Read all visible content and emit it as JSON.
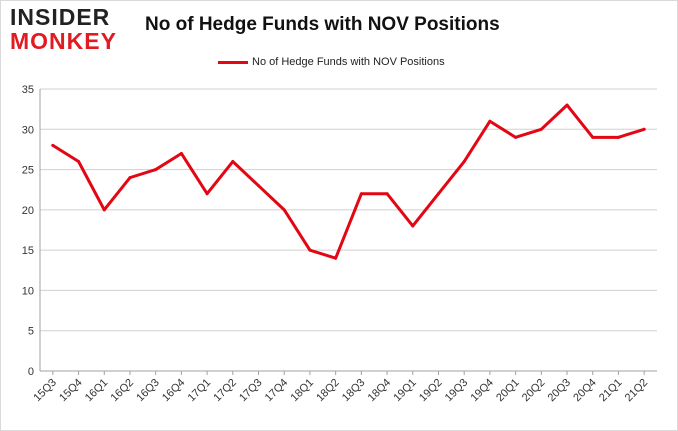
{
  "logo": {
    "line1": "INSIDER",
    "line2": "MONKEY"
  },
  "chart_data": {
    "type": "line",
    "title": "No of Hedge Funds with NOV Positions",
    "categories": [
      "15Q3",
      "15Q4",
      "16Q1",
      "16Q2",
      "16Q3",
      "16Q4",
      "17Q1",
      "17Q2",
      "17Q3",
      "17Q4",
      "18Q1",
      "18Q2",
      "18Q3",
      "18Q4",
      "19Q1",
      "19Q2",
      "19Q3",
      "19Q4",
      "20Q1",
      "20Q2",
      "20Q3",
      "20Q4",
      "21Q1",
      "21Q2"
    ],
    "series": [
      {
        "name": "No of Hedge Funds with NOV Positions",
        "color": "#e30613",
        "values": [
          28,
          26,
          20,
          24,
          25,
          27,
          22,
          26,
          23,
          20,
          15,
          14,
          22,
          22,
          18,
          22,
          26,
          31,
          29,
          30,
          33,
          29,
          29,
          30
        ]
      }
    ],
    "ylim": [
      0,
      35
    ],
    "yticks": [
      0,
      5,
      10,
      15,
      20,
      25,
      30,
      35
    ],
    "grid": true,
    "legend_position": "top-center"
  }
}
